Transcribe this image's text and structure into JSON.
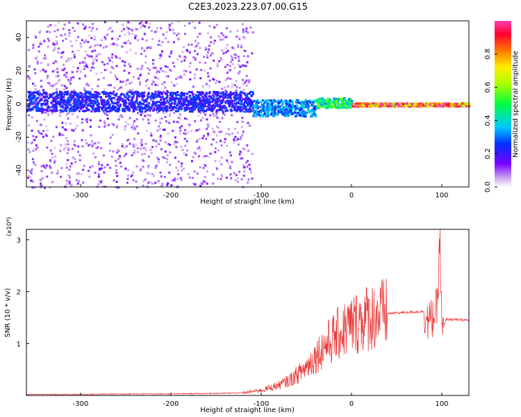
{
  "title": "C2E3.2023.223.07.00.G15",
  "colors": {
    "snr_line": "#e83a3a",
    "axis": "#000000",
    "background": "#ffffff"
  },
  "chart_data": [
    {
      "type": "heatmap",
      "xlabel": "Height of straight line (km)",
      "ylabel": "Frequency (Hz)",
      "xlim": [
        -360,
        130
      ],
      "ylim": [
        -50,
        50
      ],
      "x_ticks": [
        -300,
        -200,
        -100,
        0,
        100
      ],
      "y_ticks": [
        -40,
        -20,
        0,
        20,
        40
      ],
      "colorbar": {
        "label": "Normalized spectral amplitude",
        "range": [
          0.0,
          1.0
        ],
        "ticks": [
          0.0,
          0.2,
          0.4,
          0.6,
          0.8
        ],
        "colormap": "rainbow (white → purple → blue → cyan → green → yellow → red → magenta)"
      },
      "features": [
        {
          "x_range": [
            -360,
            -110
          ],
          "freq_range": [
            -50,
            50
          ],
          "amplitude": 0.05,
          "description": "scattered low-amplitude speckle"
        },
        {
          "x_range": [
            -360,
            -110
          ],
          "freq_center": 2,
          "freq_halfwidth": 6,
          "amplitude": 0.25
        },
        {
          "x_range": [
            -110,
            -40
          ],
          "freq_center": -2,
          "freq_halfwidth": 5,
          "amplitude": 0.35
        },
        {
          "x_range": [
            -40,
            0
          ],
          "freq_center": 1,
          "freq_halfwidth": 3,
          "amplitude": 0.5
        },
        {
          "x_range": [
            0,
            130
          ],
          "freq_center": 0,
          "freq_halfwidth": 1,
          "amplitude": 0.95
        }
      ]
    },
    {
      "type": "line",
      "xlabel": "Height of straight line (km)",
      "ylabel": "SNR (10 * v/v)",
      "y_scale_label": "(x10⁴)",
      "xlim": [
        -360,
        130
      ],
      "ylim": [
        0,
        3.2
      ],
      "x_ticks": [
        -300,
        -200,
        -100,
        0,
        100
      ],
      "y_ticks": [
        1,
        2,
        3
      ],
      "series": [
        {
          "points": [
            [
              -360,
              0.02
            ],
            [
              -300,
              0.02
            ],
            [
              -250,
              0.03
            ],
            [
              -200,
              0.03
            ],
            [
              -150,
              0.04
            ],
            [
              -120,
              0.05
            ],
            [
              -100,
              0.1
            ],
            [
              -90,
              0.15
            ],
            [
              -80,
              0.2
            ],
            [
              -70,
              0.28
            ],
            [
              -60,
              0.4
            ],
            [
              -50,
              0.55
            ],
            [
              -40,
              0.75
            ],
            [
              -30,
              0.95
            ],
            [
              -20,
              1.1
            ],
            [
              -10,
              1.25
            ],
            [
              0,
              1.35
            ],
            [
              10,
              1.45
            ],
            [
              20,
              1.52
            ],
            [
              30,
              1.56
            ],
            [
              40,
              1.58
            ],
            [
              60,
              1.6
            ],
            [
              80,
              1.62
            ],
            [
              85,
              1.4
            ],
            [
              90,
              1.5
            ],
            [
              95,
              1.7
            ],
            [
              98,
              3.1
            ],
            [
              100,
              1.2
            ],
            [
              105,
              1.47
            ],
            [
              115,
              1.46
            ],
            [
              130,
              1.45
            ]
          ]
        }
      ]
    }
  ]
}
